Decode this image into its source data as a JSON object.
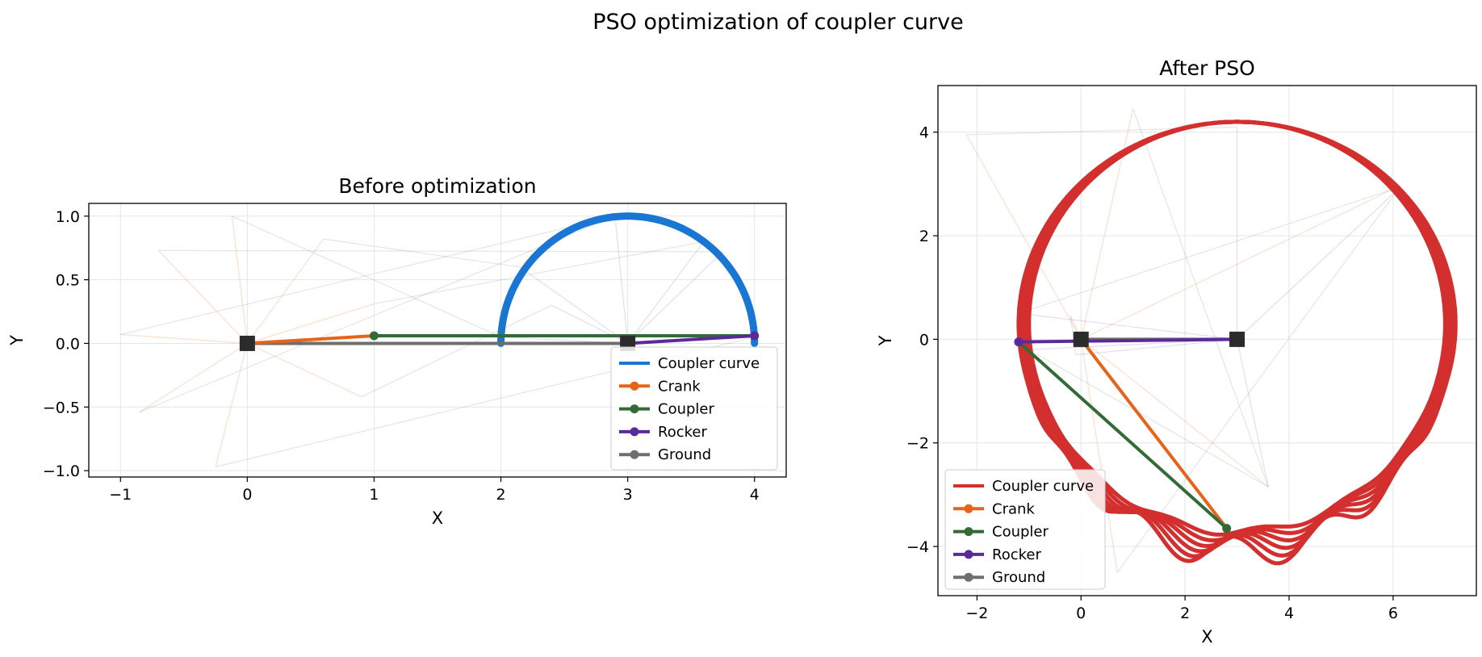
{
  "figure": {
    "title": "PSO optimization of coupler curve"
  },
  "colors": {
    "coupler_curve_before": "#1976d2",
    "coupler_curve_after": "#d32f2f",
    "crank": "#e8631a",
    "coupler": "#336b36",
    "rocker": "#5b2a9a",
    "ground": "#6e6e6e",
    "pivot": "#2b2b2b"
  },
  "chart_data": [
    {
      "type": "line",
      "title": "Before optimization",
      "xlabel": "X",
      "ylabel": "Y",
      "xlim": [
        -1.25,
        4.25
      ],
      "ylim": [
        -1.05,
        1.1
      ],
      "xticks": [
        -1,
        0,
        1,
        2,
        3,
        4
      ],
      "yticks": [
        -1.0,
        -0.5,
        0.0,
        0.5,
        1.0
      ],
      "xtick_labels": [
        "−1",
        "0",
        "1",
        "2",
        "3",
        "4"
      ],
      "ytick_labels": [
        "−1.0",
        "−0.5",
        "0.0",
        "0.5",
        "1.0"
      ],
      "grid": true,
      "legend_position": "lower-right",
      "legend": [
        "Coupler curve",
        "Crank",
        "Coupler",
        "Rocker",
        "Ground"
      ],
      "coupler_curve": {
        "type": "semicircle",
        "center": [
          3,
          0
        ],
        "radius": 1.0,
        "from_deg": 0,
        "to_deg": 180
      },
      "ground_pivots": [
        [
          0,
          0
        ],
        [
          3,
          0
        ]
      ],
      "final_pose": {
        "crank": [
          [
            0,
            0
          ],
          [
            1.0,
            0.06
          ]
        ],
        "coupler": [
          [
            1.0,
            0.06
          ],
          [
            4.0,
            0.06
          ]
        ],
        "rocker": [
          [
            3,
            0
          ],
          [
            4.0,
            0.06
          ]
        ],
        "ground": [
          [
            0,
            0
          ],
          [
            3,
            0
          ]
        ]
      },
      "ghost_crank_tips": [
        [
          -1.0,
          0.07
        ],
        [
          -0.7,
          0.73
        ],
        [
          -0.12,
          1.0
        ],
        [
          0.6,
          0.82
        ],
        [
          1.0,
          0.31
        ],
        [
          0.9,
          -0.42
        ],
        [
          -0.25,
          -0.97
        ],
        [
          -0.85,
          -0.54
        ]
      ],
      "ghost_rocker_tips": [
        [
          2.9,
          1.0
        ],
        [
          3.75,
          0.72
        ],
        [
          2.0,
          0.05
        ],
        [
          2.15,
          0.6
        ],
        [
          3.6,
          0.8
        ],
        [
          2.4,
          0.3
        ],
        [
          4.0,
          0.05
        ]
      ]
    },
    {
      "type": "line",
      "title": "After PSO",
      "xlabel": "X",
      "ylabel": "Y",
      "xlim": [
        -2.75,
        7.6
      ],
      "ylim": [
        -4.95,
        4.9
      ],
      "xticks": [
        -2,
        0,
        2,
        4,
        6
      ],
      "yticks": [
        -4,
        -2,
        0,
        2,
        4
      ],
      "xtick_labels": [
        "−2",
        "0",
        "2",
        "4",
        "6"
      ],
      "ytick_labels": [
        "−4",
        "−2",
        "0",
        "2",
        "4"
      ],
      "grid": true,
      "legend_position": "lower-left",
      "legend": [
        "Coupler curve",
        "Crank",
        "Coupler",
        "Rocker",
        "Ground"
      ],
      "coupler_curve": {
        "type": "loop",
        "center": [
          3.0,
          0.3
        ],
        "rx": 4.0,
        "ry": 3.9,
        "bottom_spread": [
          -3.7,
          -4.15
        ]
      },
      "ground_pivots": [
        [
          0,
          0
        ],
        [
          3,
          0
        ]
      ],
      "final_pose": {
        "crank": [
          [
            0,
            0
          ],
          [
            2.8,
            -3.65
          ]
        ],
        "coupler": [
          [
            2.8,
            -3.65
          ],
          [
            -1.2,
            -0.05
          ]
        ],
        "rocker": [
          [
            3,
            0
          ],
          [
            -1.2,
            -0.05
          ]
        ],
        "ground": [
          [
            0,
            0
          ],
          [
            3,
            0
          ]
        ]
      },
      "ghost_crank_tips": [
        [
          -2.2,
          3.95
        ],
        [
          0.7,
          -4.5
        ],
        [
          3.6,
          -2.85
        ],
        [
          -0.2,
          0.45
        ],
        [
          1.0,
          4.45
        ],
        [
          6.0,
          2.9
        ]
      ],
      "ghost_rocker_tips": [
        [
          3.0,
          4.1
        ],
        [
          6.1,
          2.9
        ],
        [
          -1.0,
          -0.2
        ],
        [
          -0.1,
          -0.3
        ],
        [
          3.6,
          -2.85
        ],
        [
          -1.2,
          0.5
        ]
      ]
    }
  ]
}
